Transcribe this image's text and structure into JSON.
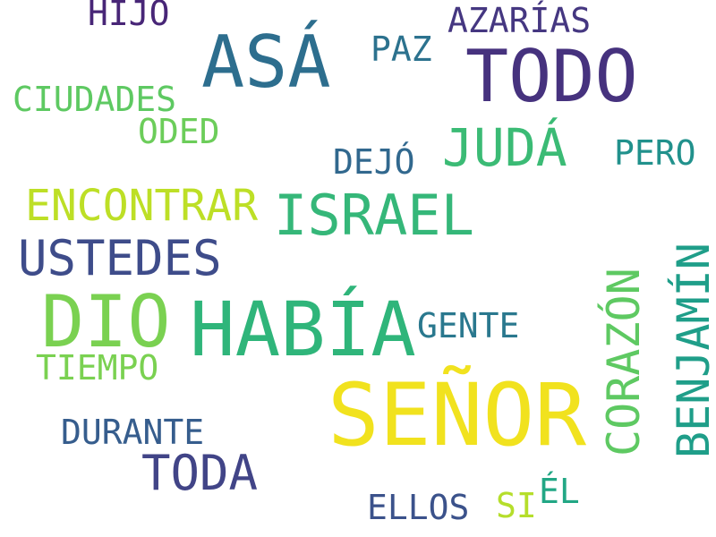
{
  "words": {
    "senor": {
      "text": "SEÑOR",
      "color": "#f1e21e"
    },
    "habia": {
      "text": "HABÍA",
      "color": "#2fb57a"
    },
    "todo": {
      "text": "TODO",
      "color": "#46327e"
    },
    "asa": {
      "text": "ASÁ",
      "color": "#2d6e8e"
    },
    "dio": {
      "text": "DIO",
      "color": "#7ad151"
    },
    "israel": {
      "text": "ISRAEL",
      "color": "#35b779"
    },
    "juda": {
      "text": "JUDÁ",
      "color": "#3bbb75"
    },
    "ustedes": {
      "text": "USTEDES",
      "color": "#3e4c8a"
    },
    "toda": {
      "text": "TODA",
      "color": "#414487"
    },
    "encontrar": {
      "text": "ENCONTRAR",
      "color": "#bddf26"
    },
    "corazon": {
      "text": "CORAZÓN",
      "color": "#5ec962"
    },
    "benjamin": {
      "text": "BENJAMÍN",
      "color": "#1f9e89"
    },
    "azarias": {
      "text": "AZARÍAS",
      "color": "#453781"
    },
    "paz": {
      "text": "PAZ",
      "color": "#2c728e"
    },
    "ciudades": {
      "text": "CIUDADES",
      "color": "#5ec962"
    },
    "oded": {
      "text": "ODED",
      "color": "#6ccd5a"
    },
    "dejo": {
      "text": "DEJÓ",
      "color": "#31688e"
    },
    "pero": {
      "text": "PERO",
      "color": "#21918c"
    },
    "gente": {
      "text": "GENTE",
      "color": "#2a788e"
    },
    "tiempo": {
      "text": "TIEMPO",
      "color": "#7ad151"
    },
    "durante": {
      "text": "DURANTE",
      "color": "#365d8d"
    },
    "ellos": {
      "text": "ELLOS",
      "color": "#3b528b"
    },
    "si": {
      "text": "SI",
      "color": "#b5de2b"
    },
    "el": {
      "text": "ÉL",
      "color": "#22a785"
    },
    "hijo": {
      "text": "HIJO",
      "color": "#482677"
    }
  }
}
